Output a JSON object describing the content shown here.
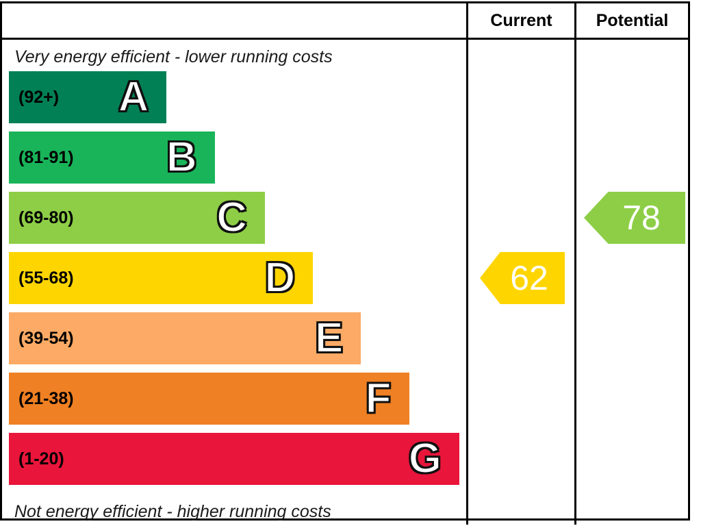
{
  "header": {
    "current_label": "Current",
    "potential_label": "Potential"
  },
  "captions": {
    "top": "Very energy efficient - lower running costs",
    "bottom": "Not energy efficient - higher running costs"
  },
  "bands": [
    {
      "letter": "A",
      "range": "(92+)",
      "color": "#008054",
      "width_pct": 34.5
    },
    {
      "letter": "B",
      "range": "(81-91)",
      "color": "#19b459",
      "width_pct": 45
    },
    {
      "letter": "C",
      "range": "(69-80)",
      "color": "#8dce46",
      "width_pct": 56
    },
    {
      "letter": "D",
      "range": "(55-68)",
      "color": "#ffd500",
      "width_pct": 66.5
    },
    {
      "letter": "E",
      "range": "(39-54)",
      "color": "#fcaa65",
      "width_pct": 77
    },
    {
      "letter": "F",
      "range": "(21-38)",
      "color": "#ef8023",
      "width_pct": 87.5
    },
    {
      "letter": "G",
      "range": "(1-20)",
      "color": "#e9153b",
      "width_pct": 98.5
    }
  ],
  "ratings": {
    "current": {
      "value": "62",
      "band": "D",
      "color": "#ffd500"
    },
    "potential": {
      "value": "78",
      "band": "C",
      "color": "#8dce46"
    }
  },
  "chart_data": {
    "type": "bar",
    "orientation": "horizontal",
    "categories": [
      "A",
      "B",
      "C",
      "D",
      "E",
      "F",
      "G"
    ],
    "band_ranges": [
      "92+",
      "81-91",
      "69-80",
      "55-68",
      "39-54",
      "21-38",
      "1-20"
    ],
    "band_colors": [
      "#008054",
      "#19b459",
      "#8dce46",
      "#ffd500",
      "#fcaa65",
      "#ef8023",
      "#e9153b"
    ],
    "bar_lengths_pct": [
      34.5,
      45,
      56,
      66.5,
      77,
      87.5,
      98.5
    ],
    "columns": [
      "Current",
      "Potential"
    ],
    "annotations": [
      {
        "column": "Current",
        "value": 62,
        "band": "D",
        "color": "#ffd500"
      },
      {
        "column": "Potential",
        "value": 78,
        "band": "C",
        "color": "#8dce46"
      }
    ],
    "top_caption": "Very energy efficient - lower running costs",
    "bottom_caption": "Not energy efficient - higher running costs",
    "legend_position": "none",
    "grid": false
  }
}
